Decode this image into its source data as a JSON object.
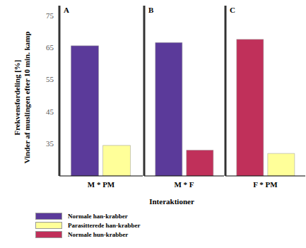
{
  "chart_data": [
    {
      "type": "bar",
      "title": "A",
      "y_label": "Frekvensfordeling [%]\nVinder af muslingen efter 10 min. kamp",
      "categories": [
        "M * PM"
      ],
      "series": [
        {
          "name": "Normale han-krabber",
          "color": "#5b3a9a",
          "values": [
            65.5
          ]
        },
        {
          "name": "Parasitterede han-krabber",
          "color": "#ffff99",
          "values": [
            34.5
          ]
        }
      ],
      "ylim": [
        25,
        78
      ],
      "yticks": [
        35,
        45,
        55,
        65,
        75
      ]
    },
    {
      "type": "bar",
      "title": "B",
      "x_label": "Interaktioner",
      "categories": [
        "M * F"
      ],
      "series": [
        {
          "name": "Normale han-krabber",
          "color": "#5b3a9a",
          "values": [
            66.5
          ]
        },
        {
          "name": "Normale hun-krabber",
          "color": "#c0305a",
          "values": [
            33
          ]
        }
      ],
      "ylim": [
        25,
        78
      ],
      "yticks": [
        35,
        45,
        55,
        65,
        75
      ],
      "tick_labels": "x"
    },
    {
      "type": "bar",
      "title": "C",
      "categories": [
        "F * PM"
      ],
      "series": [
        {
          "name": "Normale hun-krabber",
          "color": "#c0305a",
          "values": [
            67.5
          ]
        },
        {
          "name": "Parasitterede han-krabber",
          "color": "#ffff99",
          "values": [
            32
          ]
        }
      ],
      "ylim": [
        25,
        78
      ],
      "yticks": [
        35,
        45,
        55,
        65,
        75
      ],
      "tick_labels": "x"
    }
  ]
}
